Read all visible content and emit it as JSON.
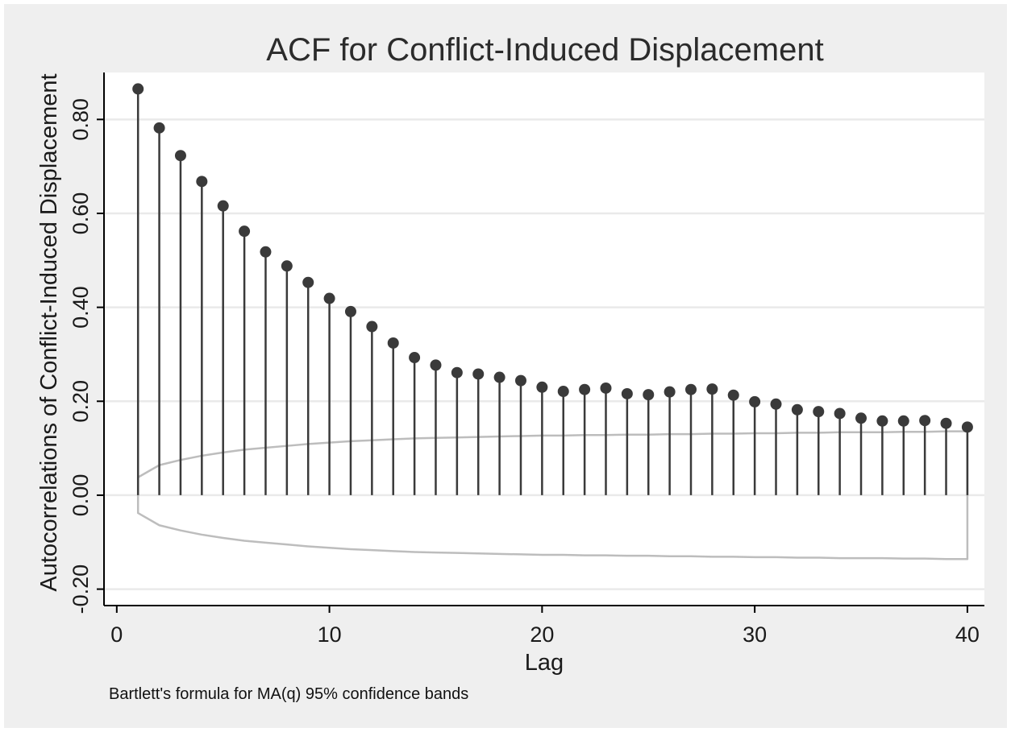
{
  "chart_data": {
    "type": "scatter",
    "subtype": "acf-spike-plot",
    "title": "ACF for Conflict-Induced Displacement",
    "xlabel": "Lag",
    "ylabel": "Autocorrelations of Conflict-Induced Displacement",
    "note": "Bartlett's formula for MA(q) 95% confidence bands",
    "xlim": [
      -0.6,
      40.8
    ],
    "ylim": [
      -0.235,
      0.9
    ],
    "xticks": [
      0,
      10,
      20,
      30,
      40
    ],
    "xtick_labels": [
      "0",
      "10",
      "20",
      "30",
      "40"
    ],
    "yticks": [
      -0.2,
      0,
      0.2,
      0.4,
      0.6,
      0.8
    ],
    "ytick_labels": [
      "-0.20",
      "0.00",
      "0.20",
      "0.40",
      "0.60",
      "0.80"
    ],
    "grid": true,
    "lags": [
      1,
      2,
      3,
      4,
      5,
      6,
      7,
      8,
      9,
      10,
      11,
      12,
      13,
      14,
      15,
      16,
      17,
      18,
      19,
      20,
      21,
      22,
      23,
      24,
      25,
      26,
      27,
      28,
      29,
      30,
      31,
      32,
      33,
      34,
      35,
      36,
      37,
      38,
      39,
      40
    ],
    "acf": [
      0.865,
      0.782,
      0.723,
      0.668,
      0.616,
      0.562,
      0.518,
      0.488,
      0.453,
      0.419,
      0.391,
      0.359,
      0.324,
      0.293,
      0.277,
      0.261,
      0.258,
      0.251,
      0.244,
      0.23,
      0.221,
      0.225,
      0.228,
      0.216,
      0.214,
      0.22,
      0.225,
      0.226,
      0.213,
      0.199,
      0.194,
      0.182,
      0.178,
      0.174,
      0.164,
      0.158,
      0.158,
      0.159,
      0.153,
      0.145
    ],
    "confidence_band": [
      0.038,
      0.064,
      0.075,
      0.084,
      0.091,
      0.097,
      0.101,
      0.105,
      0.109,
      0.112,
      0.115,
      0.117,
      0.119,
      0.121,
      0.122,
      0.123,
      0.124,
      0.125,
      0.126,
      0.127,
      0.127,
      0.128,
      0.128,
      0.129,
      0.129,
      0.13,
      0.13,
      0.131,
      0.131,
      0.132,
      0.132,
      0.133,
      0.133,
      0.134,
      0.134,
      0.134,
      0.135,
      0.135,
      0.136,
      0.136
    ],
    "colors": {
      "marker": "#3a3a3a",
      "spike": "#3a3a3a",
      "band": "#bdbdbd",
      "grid": "#eaeaea",
      "plot_background": "#ffffff",
      "graph_background": "#efefef",
      "axis": "#000000"
    }
  }
}
